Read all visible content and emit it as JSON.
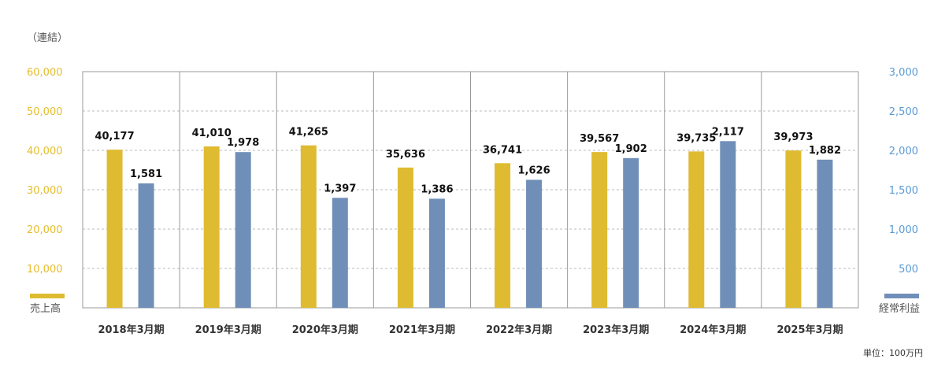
{
  "chart_data": {
    "type": "bar",
    "title": "",
    "note": "（連結）",
    "unit": "単位：100万円",
    "categories": [
      "2018年3月期",
      "2019年3月期",
      "2020年3月期",
      "2021年3月期",
      "2022年3月期",
      "2023年3月期",
      "2024年3月期",
      "2025年3月期"
    ],
    "series": [
      {
        "name": "売上高",
        "axis": "left",
        "color": "#dfbb31",
        "values": [
          40177,
          41010,
          41265,
          35636,
          36741,
          39567,
          39735,
          39973
        ],
        "labels": [
          "40,177",
          "41,010",
          "41,265",
          "35,636",
          "36,741",
          "39,567",
          "39,735",
          "39,973"
        ]
      },
      {
        "name": "経常利益",
        "axis": "right",
        "color": "#6f8fb8",
        "values": [
          1581,
          1978,
          1397,
          1386,
          1626,
          1902,
          2117,
          1882
        ],
        "labels": [
          "1,581",
          "1,978",
          "1,397",
          "1,386",
          "1,626",
          "1,902",
          "2,117",
          "1,882"
        ]
      }
    ],
    "y_left": {
      "range": [
        0,
        60000
      ],
      "ticks": [
        "10,000",
        "20,000",
        "30,000",
        "40,000",
        "50,000",
        "60,000"
      ],
      "color": "#e6bd2c"
    },
    "y_right": {
      "range": [
        0,
        3000
      ],
      "ticks": [
        "500",
        "1,000",
        "1,500",
        "2,000",
        "2,500",
        "3,000"
      ],
      "color": "#5b9bd5"
    },
    "grid": true,
    "legend": "bottom-corners"
  }
}
